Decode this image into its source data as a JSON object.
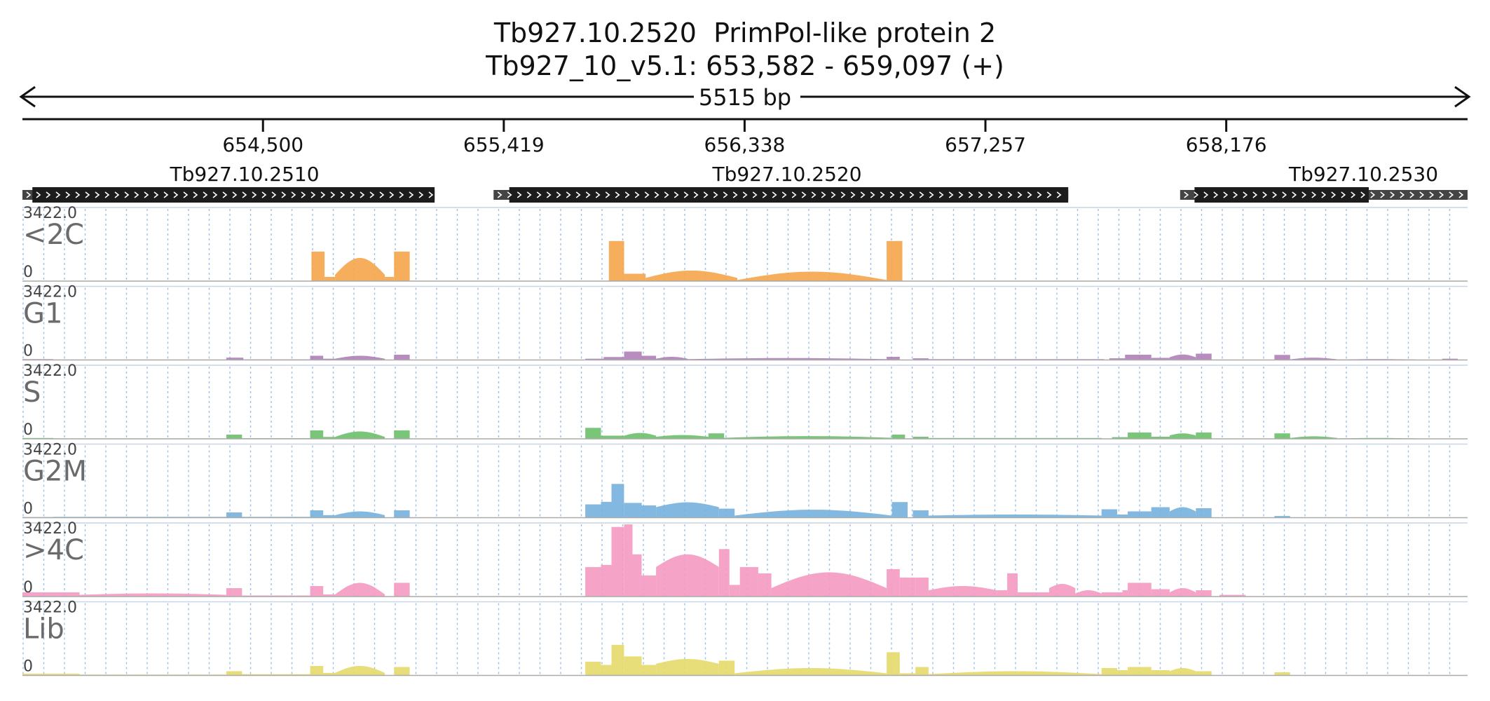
{
  "title": {
    "gene_line": "Tb927.10.2520  PrimPol-like protein 2",
    "locus_line": "Tb927_10_v5.1: 653,582 - 659,097 (+)",
    "span_label": "5515 bp"
  },
  "chart_data": {
    "type": "area",
    "x_range": [
      653582,
      659097
    ],
    "x_ticks": [
      654500,
      655419,
      656338,
      657257,
      658176
    ],
    "x_tick_labels": [
      "654,500",
      "655,419",
      "656,338",
      "657,257",
      "658,176"
    ],
    "grid": true,
    "genes": [
      {
        "name": "Tb927.10.2510",
        "start": 653582,
        "end": 655155,
        "cds_start": 653620,
        "cds_end": 655155,
        "label_pos": 654430
      },
      {
        "name": "Tb927.10.2520",
        "start": 655380,
        "end": 657573,
        "cds_start": 655440,
        "cds_end": 657573,
        "label_pos": 656500
      },
      {
        "name": "Tb927.10.2530",
        "start": 658000,
        "end": 659097,
        "cds_start": 658055,
        "cds_end": 658720,
        "label_pos": 658700
      }
    ],
    "y_max_label": "3422.0",
    "y_min_label": "0",
    "ylim": [
      0,
      3422
    ],
    "tracks": [
      {
        "name": "<2C",
        "color": "#f5a54a",
        "segments": [
          [
            654685,
            654735,
            1400,
            1400
          ],
          [
            654735,
            654775,
            200,
            200
          ],
          [
            654775,
            654965,
            300,
            1100,
            "arc"
          ],
          [
            654965,
            655000,
            200,
            200
          ],
          [
            655000,
            655060,
            1400,
            1400
          ],
          [
            655820,
            655878,
            1900,
            1900
          ],
          [
            655878,
            655960,
            350,
            350
          ],
          [
            655960,
            656310,
            150,
            500,
            "arc"
          ],
          [
            656310,
            656880,
            50,
            450,
            "arc"
          ],
          [
            656880,
            656940,
            1900,
            1900
          ]
        ]
      },
      {
        "name": "G1",
        "color": "#b07fb7",
        "segments": [
          [
            653582,
            653700,
            40,
            40
          ],
          [
            653700,
            654360,
            20,
            20
          ],
          [
            654360,
            654425,
            110,
            110
          ],
          [
            654425,
            654680,
            25,
            25
          ],
          [
            654680,
            654730,
            200,
            200
          ],
          [
            654730,
            654775,
            60,
            60
          ],
          [
            654775,
            654965,
            60,
            200,
            "arc"
          ],
          [
            655000,
            655060,
            250,
            250
          ],
          [
            655730,
            655800,
            60,
            60
          ],
          [
            655800,
            655878,
            140,
            140
          ],
          [
            655878,
            655945,
            400,
            400
          ],
          [
            655945,
            656000,
            200,
            200
          ],
          [
            656000,
            656120,
            60,
            150,
            "arc"
          ],
          [
            656120,
            656880,
            40,
            90,
            "arc"
          ],
          [
            656880,
            656930,
            150,
            150
          ],
          [
            656980,
            657040,
            80,
            80
          ],
          [
            657040,
            657710,
            40,
            40
          ],
          [
            657730,
            657790,
            80,
            80
          ],
          [
            657790,
            657890,
            250,
            250
          ],
          [
            657890,
            657960,
            100,
            100
          ],
          [
            657960,
            658060,
            130,
            260,
            "arc"
          ],
          [
            658060,
            658120,
            300,
            300
          ],
          [
            658360,
            658420,
            240,
            240
          ],
          [
            658420,
            658600,
            30,
            110,
            "arc"
          ],
          [
            658600,
            658900,
            20,
            40,
            "arc"
          ],
          [
            659000,
            659060,
            60,
            60
          ]
        ]
      },
      {
        "name": "S",
        "color": "#6cc06a",
        "segments": [
          [
            653582,
            653700,
            40,
            40
          ],
          [
            653700,
            654360,
            20,
            20
          ],
          [
            654360,
            654420,
            200,
            200
          ],
          [
            654420,
            654680,
            30,
            30
          ],
          [
            654680,
            654730,
            400,
            400
          ],
          [
            654730,
            654775,
            90,
            90
          ],
          [
            654775,
            654965,
            90,
            350,
            "arc"
          ],
          [
            655000,
            655060,
            400,
            400
          ],
          [
            655730,
            655790,
            520,
            520
          ],
          [
            655790,
            655878,
            150,
            150
          ],
          [
            655878,
            656000,
            150,
            280,
            "arc"
          ],
          [
            656000,
            656200,
            100,
            180,
            "arc"
          ],
          [
            656200,
            656260,
            260,
            260
          ],
          [
            656260,
            656900,
            50,
            130,
            "arc"
          ],
          [
            656900,
            656950,
            200,
            200
          ],
          [
            656980,
            657040,
            100,
            100
          ],
          [
            657040,
            657700,
            40,
            40
          ],
          [
            657740,
            657800,
            80,
            80
          ],
          [
            657800,
            657890,
            300,
            300
          ],
          [
            657890,
            657960,
            100,
            100
          ],
          [
            657960,
            658060,
            160,
            260,
            "arc"
          ],
          [
            658060,
            658120,
            300,
            300
          ],
          [
            658360,
            658420,
            260,
            260
          ],
          [
            658420,
            658600,
            40,
            120,
            "arc"
          ],
          [
            658600,
            658900,
            20,
            40,
            "arc"
          ]
        ]
      },
      {
        "name": "G2M",
        "color": "#76b1dd",
        "segments": [
          [
            653582,
            653700,
            30,
            30
          ],
          [
            653700,
            654360,
            40,
            40
          ],
          [
            654360,
            654420,
            250,
            250
          ],
          [
            654420,
            654680,
            40,
            40
          ],
          [
            654680,
            654730,
            350,
            350
          ],
          [
            654730,
            654775,
            120,
            120
          ],
          [
            654775,
            654965,
            120,
            300,
            "arc"
          ],
          [
            655000,
            655060,
            350,
            350
          ],
          [
            655730,
            655790,
            630,
            630
          ],
          [
            655790,
            655830,
            750,
            750
          ],
          [
            655830,
            655878,
            1600,
            1600
          ],
          [
            655878,
            655945,
            700,
            700
          ],
          [
            655945,
            656000,
            580,
            580
          ],
          [
            656000,
            656240,
            500,
            730,
            "arc"
          ],
          [
            656240,
            656300,
            430,
            430
          ],
          [
            656300,
            656900,
            100,
            380,
            "arc"
          ],
          [
            656900,
            656960,
            740,
            740
          ],
          [
            656980,
            657040,
            350,
            350
          ],
          [
            657040,
            657700,
            100,
            150,
            "arc"
          ],
          [
            657700,
            657760,
            400,
            400
          ],
          [
            657760,
            657800,
            150,
            150
          ],
          [
            657800,
            657890,
            300,
            300
          ],
          [
            657890,
            657960,
            500,
            500
          ],
          [
            657960,
            658060,
            300,
            500,
            "arc"
          ],
          [
            658060,
            658120,
            450,
            450
          ],
          [
            658360,
            658420,
            80,
            80
          ]
        ]
      },
      {
        "name": ">4C",
        "color": "#f49ac1",
        "segments": [
          [
            653582,
            653800,
            200,
            200
          ],
          [
            653800,
            654360,
            80,
            150,
            "arc"
          ],
          [
            654360,
            654420,
            400,
            400
          ],
          [
            654420,
            654680,
            50,
            50
          ],
          [
            654680,
            654730,
            500,
            500
          ],
          [
            654730,
            654775,
            100,
            100
          ],
          [
            654775,
            654965,
            100,
            650,
            "arc"
          ],
          [
            655000,
            655060,
            650,
            650
          ],
          [
            655730,
            655790,
            1400,
            1400
          ],
          [
            655790,
            655830,
            1500,
            1500
          ],
          [
            655830,
            655878,
            3300,
            3300
          ],
          [
            655878,
            655910,
            3422,
            3422
          ],
          [
            655910,
            655945,
            2000,
            2000
          ],
          [
            655945,
            656000,
            1000,
            1000
          ],
          [
            656000,
            656240,
            1400,
            2000,
            "arc"
          ],
          [
            656240,
            656280,
            2250,
            2250
          ],
          [
            656280,
            656320,
            550,
            550
          ],
          [
            656320,
            656390,
            1400,
            1400
          ],
          [
            656390,
            656440,
            1100,
            1100
          ],
          [
            656440,
            656880,
            400,
            1150,
            "arc"
          ],
          [
            656880,
            656930,
            1300,
            1300
          ],
          [
            656930,
            656990,
            900,
            900
          ],
          [
            656990,
            657040,
            900,
            900
          ],
          [
            657040,
            657300,
            300,
            500,
            "arc"
          ],
          [
            657300,
            657340,
            300,
            300
          ],
          [
            657340,
            657380,
            1100,
            1100
          ],
          [
            657380,
            657500,
            200,
            200
          ],
          [
            657500,
            657600,
            400,
            600,
            "arc"
          ],
          [
            657600,
            657700,
            150,
            300,
            "arc"
          ],
          [
            657700,
            657780,
            200,
            200
          ],
          [
            657780,
            657800,
            300,
            300
          ],
          [
            657800,
            657890,
            650,
            650
          ],
          [
            657890,
            657960,
            350,
            350
          ],
          [
            657960,
            658060,
            200,
            400,
            "arc"
          ],
          [
            658060,
            658120,
            300,
            300
          ],
          [
            658150,
            658250,
            80,
            80
          ]
        ]
      },
      {
        "name": "Lib",
        "color": "#e6da6a",
        "segments": [
          [
            653582,
            653800,
            80,
            80
          ],
          [
            653800,
            654360,
            40,
            40
          ],
          [
            654360,
            654420,
            200,
            200
          ],
          [
            654420,
            654680,
            60,
            60
          ],
          [
            654680,
            654730,
            450,
            450
          ],
          [
            654730,
            654775,
            120,
            120
          ],
          [
            654775,
            654965,
            120,
            450,
            "arc"
          ],
          [
            655000,
            655060,
            400,
            400
          ],
          [
            655730,
            655790,
            650,
            650
          ],
          [
            655790,
            655830,
            500,
            500
          ],
          [
            655830,
            655878,
            1450,
            1450
          ],
          [
            655878,
            655945,
            900,
            900
          ],
          [
            655945,
            656000,
            500,
            500
          ],
          [
            656000,
            656240,
            550,
            780,
            "arc"
          ],
          [
            656240,
            656300,
            700,
            700
          ],
          [
            656300,
            656880,
            100,
            350,
            "arc"
          ],
          [
            656880,
            656930,
            1100,
            1100
          ],
          [
            656930,
            656990,
            100,
            100
          ],
          [
            656990,
            657040,
            400,
            400
          ],
          [
            657040,
            657700,
            60,
            200,
            "arc"
          ],
          [
            657700,
            657760,
            350,
            350
          ],
          [
            657760,
            657800,
            250,
            250
          ],
          [
            657800,
            657890,
            400,
            400
          ],
          [
            657890,
            657960,
            250,
            250
          ],
          [
            657960,
            658060,
            200,
            350,
            "arc"
          ],
          [
            658060,
            658120,
            200,
            200
          ],
          [
            658360,
            658420,
            150,
            150
          ]
        ]
      }
    ]
  }
}
